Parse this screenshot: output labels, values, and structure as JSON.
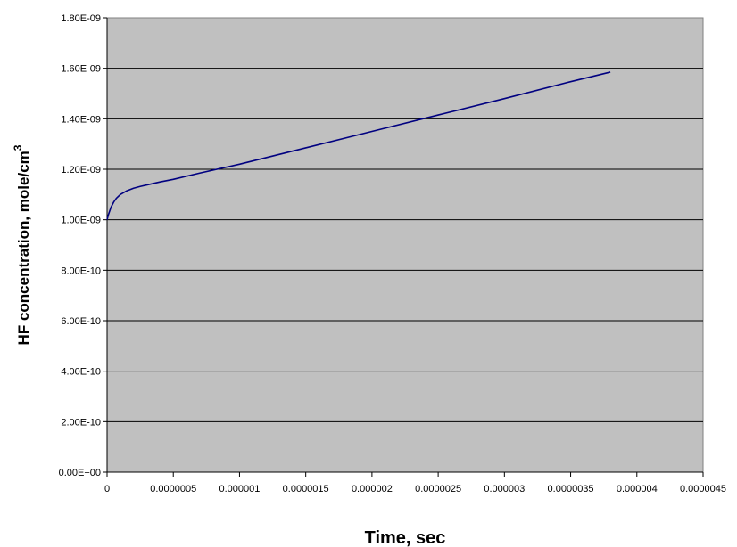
{
  "chart_data": {
    "type": "line",
    "title": "",
    "xlabel": "Time, sec",
    "ylabel": "HF concentration, mole/cm",
    "ylabel_superscript": "3",
    "xlim": [
      0,
      4.5e-06
    ],
    "ylim": [
      0,
      1.8e-09
    ],
    "grid": {
      "horizontal": true,
      "vertical": false
    },
    "plot_background": "#c0c0c0",
    "line_color": "#000080",
    "x_ticks": [
      0,
      5e-07,
      1e-06,
      1.5e-06,
      2e-06,
      2.5e-06,
      3e-06,
      3.5e-06,
      4e-06,
      4.5e-06
    ],
    "x_tick_labels": [
      "0",
      "0.0000005",
      "0.000001",
      "0.0000015",
      "0.000002",
      "0.0000025",
      "0.000003",
      "0.0000035",
      "0.000004",
      "0.0000045"
    ],
    "y_ticks": [
      0,
      2e-10,
      4e-10,
      6e-10,
      8e-10,
      1e-09,
      1.2e-09,
      1.4e-09,
      1.6e-09,
      1.8e-09
    ],
    "y_tick_labels": [
      "0.00E+00",
      "2.00E-10",
      "4.00E-10",
      "6.00E-10",
      "8.00E-10",
      "1.00E-09",
      "1.20E-09",
      "1.40E-09",
      "1.60E-09",
      "1.80E-09"
    ],
    "series": [
      {
        "x": [
          0,
          5e-09,
          1e-08,
          2e-08,
          3e-08,
          5e-08,
          7e-08,
          1e-07,
          1.5e-07,
          2e-07,
          2.5e-07,
          3e-07,
          4e-07,
          5e-07,
          7e-07,
          1e-06,
          1.5e-06,
          2e-06,
          2.5e-06,
          3e-06,
          3.5e-06,
          3.8e-06
        ],
        "y": [
          1e-09,
          1.01e-09,
          1.02e-09,
          1.035e-09,
          1.05e-09,
          1.07e-09,
          1.085e-09,
          1.1e-09,
          1.115e-09,
          1.125e-09,
          1.132e-09,
          1.138e-09,
          1.15e-09,
          1.16e-09,
          1.185e-09,
          1.22e-09,
          1.285e-09,
          1.35e-09,
          1.415e-09,
          1.48e-09,
          1.547e-09,
          1.585e-09
        ]
      }
    ]
  }
}
